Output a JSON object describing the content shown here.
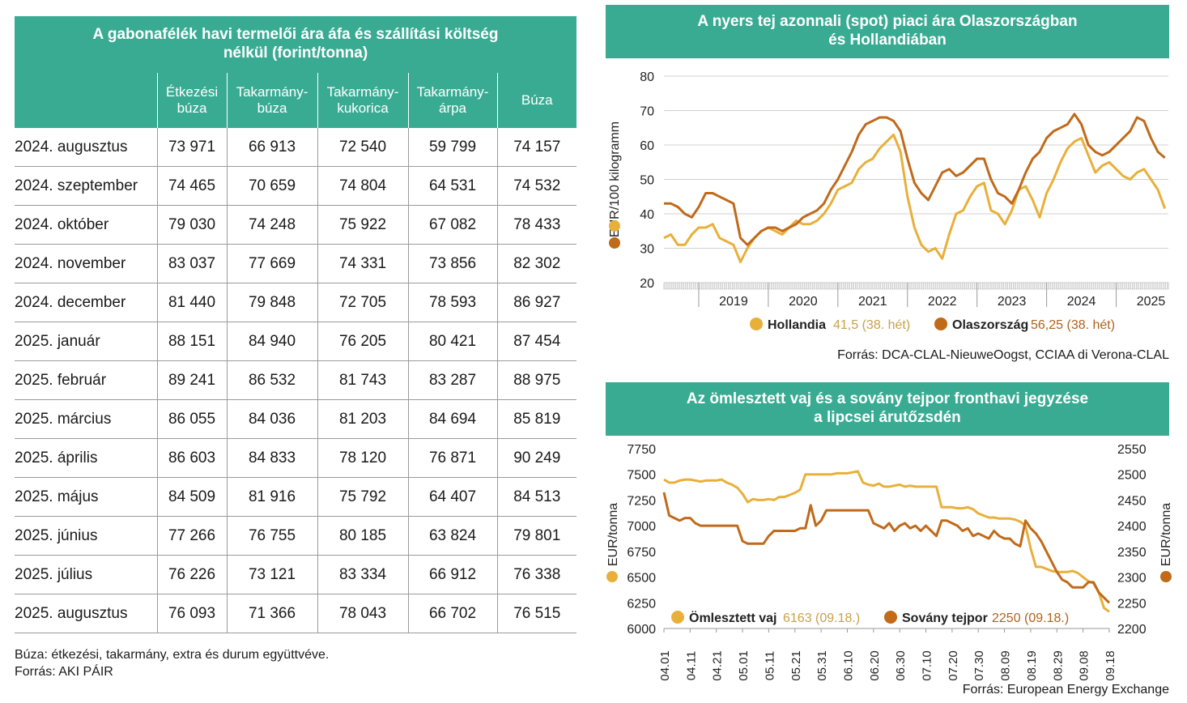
{
  "table": {
    "title_line1": "A gabonafélék havi termelői ára áfa és szállítási költség",
    "title_line2": "nélkül (forint/tonna)",
    "headers": [
      {
        "line1": "Étkezési",
        "line2": "búza"
      },
      {
        "line1": "Takarmány-",
        "line2": "búza"
      },
      {
        "line1": "Takarmány-",
        "line2": "kukorica"
      },
      {
        "line1": "Takarmány-",
        "line2": "árpa"
      },
      {
        "line1": "Búza",
        "line2": ""
      }
    ],
    "rows": [
      [
        "2024. augusztus",
        "73 971",
        "66 913",
        "72 540",
        "59 799",
        "74 157"
      ],
      [
        "2024. szeptember",
        "74 465",
        "70 659",
        "74 804",
        "64 531",
        "74 532"
      ],
      [
        "2024. október",
        "79 030",
        "74 248",
        "75 922",
        "67 082",
        "78 433"
      ],
      [
        "2024. november",
        "83 037",
        "77 669",
        "74 331",
        "73 856",
        "82 302"
      ],
      [
        "2024. december",
        "81 440",
        "79 848",
        "72 705",
        "78 593",
        "86 927"
      ],
      [
        "2025. január",
        "88 151",
        "84 940",
        "76 205",
        "80 421",
        "87 454"
      ],
      [
        "2025. február",
        "89 241",
        "86 532",
        "81 743",
        "83 287",
        "88 975"
      ],
      [
        "2025. március",
        "86 055",
        "84 036",
        "81 203",
        "84 694",
        "85 819"
      ],
      [
        "2025. április",
        "86 603",
        "84 833",
        "78 120",
        "76 871",
        "90 249"
      ],
      [
        "2025. május",
        "84 509",
        "81 916",
        "75 792",
        "64 407",
        "84 513"
      ],
      [
        "2025. június",
        "77 266",
        "76 755",
        "80 185",
        "63 824",
        "79 801"
      ],
      [
        "2025. július",
        "76 226",
        "73 121",
        "83 334",
        "66 912",
        "76 338"
      ],
      [
        "2025. augusztus",
        "76 093",
        "71 366",
        "78 043",
        "66 702",
        "76 515"
      ]
    ],
    "note": "Búza: étkezési, takarmány, extra és durum együttvéve.",
    "source": "Forrás: AKI PÁIR"
  },
  "chart_data": [
    {
      "type": "line",
      "title_line1": "A nyers tej azonnali (spot) piaci ára Olaszországban",
      "title_line2": "és Hollandiában",
      "ylabel": "EUR/100 kilogramm",
      "ylim": [
        20,
        80
      ],
      "yticks": [
        "20",
        "30",
        "40",
        "50",
        "60",
        "70",
        "80"
      ],
      "xlim": [
        2018.5,
        2025.75
      ],
      "xtick_labels": [
        "2019",
        "2020",
        "2021",
        "2022",
        "2023",
        "2024",
        "2025"
      ],
      "series": [
        {
          "name": "Hollandia",
          "value_label": "41,5 (38. hét)",
          "color": "#e8b03a",
          "x": [
            2018.5,
            2018.6,
            2018.7,
            2018.8,
            2018.9,
            2019.0,
            2019.1,
            2019.2,
            2019.3,
            2019.4,
            2019.5,
            2019.6,
            2019.7,
            2019.8,
            2019.9,
            2020.0,
            2020.1,
            2020.2,
            2020.3,
            2020.4,
            2020.5,
            2020.6,
            2020.7,
            2020.8,
            2020.9,
            2021.0,
            2021.1,
            2021.2,
            2021.3,
            2021.4,
            2021.5,
            2021.6,
            2021.7,
            2021.8,
            2021.9,
            2022.0,
            2022.1,
            2022.2,
            2022.3,
            2022.4,
            2022.5,
            2022.6,
            2022.7,
            2022.8,
            2022.9,
            2023.0,
            2023.1,
            2023.2,
            2023.3,
            2023.4,
            2023.5,
            2023.6,
            2023.7,
            2023.8,
            2023.9,
            2024.0,
            2024.1,
            2024.2,
            2024.3,
            2024.4,
            2024.5,
            2024.6,
            2024.7,
            2024.8,
            2024.9,
            2025.0,
            2025.1,
            2025.2,
            2025.3,
            2025.4,
            2025.5,
            2025.6,
            2025.7
          ],
          "y": [
            33,
            34,
            31,
            31,
            34,
            36,
            36,
            37,
            33,
            32,
            31,
            26,
            30,
            33,
            35,
            36,
            35,
            34,
            36,
            38,
            37,
            37,
            38,
            40,
            43,
            47,
            48,
            49,
            53,
            55,
            56,
            59,
            61,
            63,
            58,
            45,
            36,
            31,
            29,
            30,
            27,
            34,
            40,
            41,
            45,
            48,
            49,
            41,
            40,
            37,
            41,
            47,
            48,
            44,
            39,
            46,
            50,
            55,
            59,
            61,
            62,
            57,
            52,
            54,
            55,
            53,
            51,
            50,
            52,
            53,
            50,
            47,
            41.5
          ]
        },
        {
          "name": "Olaszország",
          "value_label": "56,25 (38. hét)",
          "color": "#c06a1a",
          "x": [
            2018.5,
            2018.6,
            2018.7,
            2018.8,
            2018.9,
            2019.0,
            2019.1,
            2019.2,
            2019.3,
            2019.4,
            2019.5,
            2019.6,
            2019.7,
            2019.8,
            2019.9,
            2020.0,
            2020.1,
            2020.2,
            2020.3,
            2020.4,
            2020.5,
            2020.6,
            2020.7,
            2020.8,
            2020.9,
            2021.0,
            2021.1,
            2021.2,
            2021.3,
            2021.4,
            2021.5,
            2021.6,
            2021.7,
            2021.8,
            2021.9,
            2022.0,
            2022.1,
            2022.2,
            2022.3,
            2022.4,
            2022.5,
            2022.6,
            2022.7,
            2022.8,
            2022.9,
            2023.0,
            2023.1,
            2023.2,
            2023.3,
            2023.4,
            2023.5,
            2023.6,
            2023.7,
            2023.8,
            2023.9,
            2024.0,
            2024.1,
            2024.2,
            2024.3,
            2024.4,
            2024.5,
            2024.6,
            2024.7,
            2024.8,
            2024.9,
            2025.0,
            2025.1,
            2025.2,
            2025.3,
            2025.4,
            2025.5,
            2025.6,
            2025.7
          ],
          "y": [
            43,
            43,
            42,
            40,
            39,
            42,
            46,
            46,
            45,
            44,
            43,
            33,
            31,
            33,
            35,
            36,
            36,
            35,
            36,
            37,
            39,
            40,
            41,
            43,
            47,
            50,
            54,
            58,
            63,
            66,
            67,
            68,
            68,
            67,
            64,
            56,
            49,
            46,
            44,
            48,
            52,
            53,
            51,
            52,
            54,
            56,
            56,
            50,
            46,
            45,
            43,
            47,
            52,
            56,
            58,
            62,
            64,
            65,
            66,
            69,
            66,
            60,
            58,
            57,
            58,
            60,
            62,
            64,
            68,
            67,
            62,
            58,
            56.25
          ]
        }
      ],
      "source": "Forrás: DCA-CLAL-NieuweOogst, CCIAA di Verona-CLAL"
    },
    {
      "type": "line",
      "title_line1": "Az ömlesztett vaj és a sovány tejpor fronthavi jegyzése",
      "title_line2": "a lipcsei árutőzsdén",
      "ylabel_left": "EUR/tonna",
      "ylabel_right": "EUR/tonna",
      "ylim_left": [
        6000,
        7750
      ],
      "ylim_right": [
        2200,
        2550
      ],
      "yticks_left": [
        "6000",
        "6250",
        "6500",
        "6750",
        "7000",
        "7250",
        "7500",
        "7750"
      ],
      "yticks_right": [
        "2200",
        "2250",
        "2300",
        "2350",
        "2400",
        "2450",
        "2500",
        "2550"
      ],
      "xtick_labels": [
        "04.01",
        "04.11",
        "04.21",
        "05.01",
        "05.11",
        "05.21",
        "05.31",
        "06.10",
        "06.20",
        "06.30",
        "07.10",
        "07.20",
        "07.30",
        "08.09",
        "08.19",
        "08.29",
        "09.08",
        "09.18"
      ],
      "series": [
        {
          "name": "Ömlesztett vaj",
          "axis": "left",
          "value_label": "6163 (09.18.)",
          "color": "#e8b03a",
          "day": [
            0,
            2,
            4,
            6,
            8,
            10,
            12,
            14,
            16,
            18,
            20,
            22,
            24,
            26,
            28,
            30,
            32,
            34,
            36,
            38,
            40,
            42,
            44,
            46,
            48,
            50,
            52,
            54,
            56,
            58,
            60,
            62,
            64,
            66,
            68,
            70,
            72,
            74,
            76,
            78,
            80,
            82,
            84,
            86,
            88,
            90,
            92,
            94,
            96,
            98,
            100,
            102,
            104,
            106,
            108,
            110,
            112,
            114,
            116,
            118,
            120,
            122,
            124,
            126,
            128,
            130,
            132,
            134,
            136,
            138,
            140,
            142,
            144,
            146,
            148,
            150,
            152,
            154,
            156,
            158,
            160,
            162,
            164,
            166,
            168,
            170
          ],
          "y": [
            7450,
            7420,
            7420,
            7440,
            7450,
            7450,
            7440,
            7430,
            7440,
            7440,
            7440,
            7450,
            7420,
            7400,
            7370,
            7310,
            7230,
            7260,
            7250,
            7250,
            7260,
            7250,
            7280,
            7280,
            7300,
            7320,
            7350,
            7500,
            7500,
            7500,
            7500,
            7500,
            7500,
            7510,
            7510,
            7510,
            7520,
            7530,
            7420,
            7400,
            7390,
            7410,
            7380,
            7380,
            7390,
            7400,
            7380,
            7390,
            7380,
            7380,
            7380,
            7380,
            7380,
            7180,
            7180,
            7180,
            7170,
            7170,
            7180,
            7160,
            7120,
            7100,
            7080,
            7080,
            7070,
            7070,
            7070,
            7060,
            7040,
            7000,
            6780,
            6600,
            6600,
            6580,
            6560,
            6550,
            6550,
            6550,
            6560,
            6540,
            6500,
            6460,
            6440,
            6350,
            6200,
            6163
          ]
        },
        {
          "name": "Sovány tejpor",
          "axis": "right",
          "value_label": "2250 (09.18.)",
          "color": "#c06a1a",
          "day": [
            0,
            2,
            4,
            6,
            8,
            10,
            12,
            14,
            16,
            18,
            20,
            22,
            24,
            26,
            28,
            30,
            32,
            34,
            36,
            38,
            40,
            42,
            44,
            46,
            48,
            50,
            52,
            54,
            56,
            58,
            60,
            62,
            64,
            66,
            68,
            70,
            72,
            74,
            76,
            78,
            80,
            82,
            84,
            86,
            88,
            90,
            92,
            94,
            96,
            98,
            100,
            102,
            104,
            106,
            108,
            110,
            112,
            114,
            116,
            118,
            120,
            122,
            124,
            126,
            128,
            130,
            132,
            134,
            136,
            138,
            140,
            142,
            144,
            146,
            148,
            150,
            152,
            154,
            156,
            158,
            160,
            162,
            164,
            166,
            168,
            170
          ],
          "y": [
            2465,
            2420,
            2415,
            2410,
            2415,
            2415,
            2405,
            2400,
            2400,
            2400,
            2400,
            2400,
            2400,
            2400,
            2400,
            2370,
            2365,
            2365,
            2365,
            2365,
            2380,
            2390,
            2390,
            2390,
            2390,
            2390,
            2395,
            2395,
            2440,
            2400,
            2410,
            2430,
            2430,
            2430,
            2430,
            2430,
            2430,
            2430,
            2430,
            2430,
            2405,
            2400,
            2395,
            2405,
            2390,
            2400,
            2405,
            2395,
            2400,
            2390,
            2400,
            2390,
            2380,
            2410,
            2410,
            2405,
            2400,
            2390,
            2395,
            2380,
            2385,
            2380,
            2375,
            2390,
            2380,
            2375,
            2375,
            2365,
            2360,
            2410,
            2395,
            2385,
            2370,
            2350,
            2330,
            2310,
            2295,
            2290,
            2280,
            2280,
            2280,
            2290,
            2290,
            2270,
            2260,
            2250
          ]
        }
      ],
      "source": "Forrás: European Energy Exchange"
    }
  ]
}
